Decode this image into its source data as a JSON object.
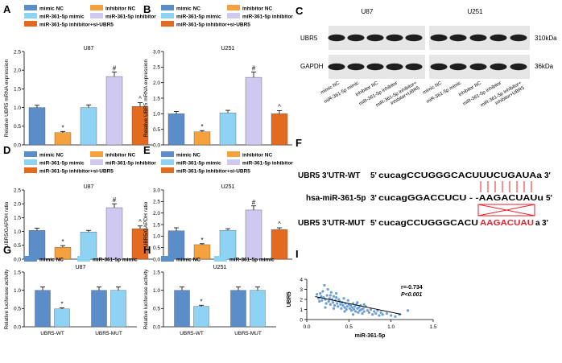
{
  "colors": {
    "mimic_nc": "#5b8ec9",
    "inhibitor_nc": "#f4a13e",
    "mimic": "#8fd3f4",
    "inhibitor": "#cfc8ef",
    "inhibitor_si": "#e36a1f",
    "scatter": "#6a9fd8",
    "red": "#e8202a"
  },
  "legends": {
    "five": [
      "mimic NC",
      "inhibitor NC",
      "miR-361-5p mimic",
      "miR-361-5p inhibitor",
      "miR-361-5p inhibitor+si-UBR5"
    ],
    "two": [
      "mimic NC",
      "miR-361-5p mimic"
    ]
  },
  "panel_c": {
    "label": "C",
    "titles": [
      "U87",
      "U251"
    ],
    "rows": [
      "UBR5",
      "GAPDH"
    ],
    "kda": [
      "310kDa",
      "36kDa"
    ],
    "lanes": [
      "mimic NC",
      "miR-361-5p mimic",
      "inhibitor NC",
      "miR-361-5p inhibitor",
      "miR-361-5p inhibitor+ inhibitor+UBR5",
      "mimic NC",
      "miR-361-5p mimic",
      "inhibitor NC",
      "miR-361-5p inhibitor",
      "miR-361-5p inhibitor+ inhibitor+UBR5"
    ]
  },
  "panel_f": {
    "label": "F",
    "rows": [
      {
        "name": "UBR5 3'UTR-WT",
        "prefix": "5'",
        "seq": "cucagCCUGGGCACUUUCUGAUAa",
        "suffix": "3'"
      },
      {
        "name": "hsa-miR-361-5p",
        "prefix": "3'",
        "seq": "cucagGGACCUCU - -AAGACUAUu",
        "suffix": "5'"
      },
      {
        "name": "UBR5 3'UTR-MUT",
        "prefix": "5'",
        "seq_black": "cucagCCUGGGCACU",
        "seq_red": "AAGACUAU",
        "seq_end": "a",
        "suffix": "3'"
      }
    ]
  },
  "chart_data": [
    {
      "id": "A",
      "panel_label": "A",
      "type": "bar",
      "title": "U87",
      "ylabel": "Relative UBR5 mRNA expression",
      "ylim": [
        0,
        2.5
      ],
      "yticks": [
        "0.0",
        "0.5",
        "1.0",
        "1.5",
        "2.0",
        "2.5"
      ],
      "categories": [
        "mimic NC",
        "miR-361-5p mimic",
        "inhibitor NC",
        "miR-361-5p inhibitor",
        "miR-361-5p inhibitor+si-UBR5"
      ],
      "values": [
        1.0,
        0.33,
        1.0,
        1.83,
        1.03
      ],
      "errors": [
        0.06,
        0.03,
        0.07,
        0.12,
        0.1
      ],
      "marks": [
        "",
        "*",
        "",
        "#",
        "^"
      ]
    },
    {
      "id": "B",
      "panel_label": "B",
      "type": "bar",
      "title": "U251",
      "ylabel": "Relative UBR5 mRNA expression",
      "ylim": [
        0,
        3
      ],
      "yticks": [
        "0.0",
        "0.5",
        "1.0",
        "1.5",
        "2.0",
        "2.5",
        "3.0"
      ],
      "categories": [
        "mimic NC",
        "miR-361-5p mimic",
        "inhibitor NC",
        "miR-361-5p inhibitor",
        "miR-361-5p inhibitor+si-UBR5"
      ],
      "values": [
        1.0,
        0.42,
        1.03,
        2.17,
        1.0
      ],
      "errors": [
        0.07,
        0.04,
        0.08,
        0.17,
        0.1
      ],
      "marks": [
        "",
        "*",
        "",
        "#",
        "^"
      ]
    },
    {
      "id": "D",
      "panel_label": "D",
      "type": "bar",
      "title": "U87",
      "ylabel": "UBR5/GAPDH ratio",
      "ylim": [
        0,
        2.5
      ],
      "yticks": [
        "0.0",
        "0.5",
        "1.0",
        "1.5",
        "2.0",
        "2.5"
      ],
      "categories": [
        "mimic NC",
        "miR-361-5p mimic",
        "inhibitor NC",
        "miR-361-5p inhibitor",
        "miR-361-5p inhibitor+si-UBR5"
      ],
      "values": [
        1.04,
        0.43,
        0.98,
        1.86,
        1.1
      ],
      "errors": [
        0.08,
        0.06,
        0.06,
        0.14,
        0.1
      ],
      "marks": [
        "",
        "*",
        "",
        "#",
        "^"
      ]
    },
    {
      "id": "E",
      "panel_label": "E",
      "type": "bar",
      "title": "U251",
      "ylabel": "UBR5/GAPDH ratio",
      "ylim": [
        0,
        3
      ],
      "yticks": [
        "0.0",
        "0.5",
        "1.0",
        "1.5",
        "2.0",
        "2.5",
        "3.0"
      ],
      "categories": [
        "mimic NC",
        "miR-361-5p mimic",
        "inhibitor NC",
        "miR-361-5p inhibitor",
        "miR-361-5p inhibitor+si-UBR5"
      ],
      "values": [
        1.23,
        0.63,
        1.25,
        2.13,
        1.28
      ],
      "errors": [
        0.13,
        0.04,
        0.07,
        0.18,
        0.08
      ],
      "marks": [
        "",
        "*",
        "",
        "#",
        "^"
      ]
    },
    {
      "id": "G",
      "panel_label": "G",
      "type": "bar",
      "title": "U87",
      "ylabel": "Relative luciferase activity",
      "ylim": [
        0,
        1.5
      ],
      "yticks": [
        "0.0",
        "0.5",
        "1.0",
        "1.5"
      ],
      "categories": [
        "UBR5-WT",
        "UBR5-MUT"
      ],
      "series": [
        {
          "name": "mimic NC",
          "values": [
            1.0,
            1.0
          ],
          "errors": [
            0.09,
            0.09
          ],
          "marks": [
            "",
            ""
          ]
        },
        {
          "name": "miR-361-5p mimic",
          "values": [
            0.49,
            1.0
          ],
          "errors": [
            0.03,
            0.09
          ],
          "marks": [
            "*",
            ""
          ]
        }
      ]
    },
    {
      "id": "H",
      "panel_label": "H",
      "type": "bar",
      "title": "U251",
      "ylabel": "Relative luciferase activity",
      "ylim": [
        0,
        1.5
      ],
      "yticks": [
        "0.0",
        "0.5",
        "1.0",
        "1.5"
      ],
      "categories": [
        "UBR5-WT",
        "UBR5-MUT"
      ],
      "series": [
        {
          "name": "mimic NC",
          "values": [
            1.0,
            1.0
          ],
          "errors": [
            0.09,
            0.09
          ],
          "marks": [
            "",
            ""
          ]
        },
        {
          "name": "miR-361-5p mimic",
          "values": [
            0.56,
            1.0
          ],
          "errors": [
            0.03,
            0.09
          ],
          "marks": [
            "*",
            ""
          ]
        }
      ]
    },
    {
      "id": "I",
      "panel_label": "I",
      "type": "scatter",
      "xlabel": "miR-361-5p",
      "ylabel": "UBR5",
      "xlim": [
        0,
        1.5
      ],
      "ylim": [
        0,
        4
      ],
      "xticks": [
        "0.0",
        "0.5",
        "1.0",
        "1.5"
      ],
      "yticks": [
        "0",
        "1",
        "2",
        "3",
        "4"
      ],
      "annotation": [
        "r=-0.734",
        "P<0.001"
      ],
      "fit": [
        [
          0.1,
          2.28
        ],
        [
          1.12,
          0.52
        ]
      ],
      "points": [
        [
          0.12,
          2.5
        ],
        [
          0.14,
          2.1
        ],
        [
          0.15,
          1.8
        ],
        [
          0.16,
          2.6
        ],
        [
          0.17,
          2.3
        ],
        [
          0.18,
          1.9
        ],
        [
          0.19,
          2.8
        ],
        [
          0.2,
          2.2
        ],
        [
          0.21,
          3.4
        ],
        [
          0.22,
          2.0
        ],
        [
          0.23,
          1.6
        ],
        [
          0.24,
          2.4
        ],
        [
          0.25,
          3.0
        ],
        [
          0.26,
          1.8
        ],
        [
          0.27,
          2.1
        ],
        [
          0.28,
          1.5
        ],
        [
          0.29,
          2.7
        ],
        [
          0.3,
          2.0
        ],
        [
          0.31,
          1.7
        ],
        [
          0.32,
          2.3
        ],
        [
          0.33,
          1.4
        ],
        [
          0.34,
          1.9
        ],
        [
          0.35,
          2.2
        ],
        [
          0.36,
          1.6
        ],
        [
          0.37,
          1.3
        ],
        [
          0.38,
          2.0
        ],
        [
          0.39,
          1.8
        ],
        [
          0.4,
          1.5
        ],
        [
          0.41,
          1.1
        ],
        [
          0.42,
          1.7
        ],
        [
          0.43,
          1.4
        ],
        [
          0.44,
          2.1
        ],
        [
          0.45,
          1.2
        ],
        [
          0.46,
          1.6
        ],
        [
          0.47,
          1.0
        ],
        [
          0.48,
          1.3
        ],
        [
          0.49,
          1.9
        ],
        [
          0.5,
          1.5
        ],
        [
          0.51,
          1.1
        ],
        [
          0.52,
          1.4
        ],
        [
          0.53,
          0.9
        ],
        [
          0.54,
          1.2
        ],
        [
          0.55,
          1.6
        ],
        [
          0.56,
          1.0
        ],
        [
          0.57,
          1.3
        ],
        [
          0.58,
          0.8
        ],
        [
          0.59,
          1.5
        ],
        [
          0.6,
          1.1
        ],
        [
          0.61,
          0.7
        ],
        [
          0.62,
          1.2
        ],
        [
          0.63,
          0.9
        ],
        [
          0.64,
          1.4
        ],
        [
          0.65,
          1.0
        ],
        [
          0.66,
          0.6
        ],
        [
          0.67,
          1.1
        ],
        [
          0.68,
          0.8
        ],
        [
          0.7,
          1.3
        ],
        [
          0.72,
          0.9
        ],
        [
          0.74,
          0.7
        ],
        [
          0.76,
          1.0
        ],
        [
          0.78,
          0.5
        ],
        [
          0.8,
          0.8
        ],
        [
          0.82,
          0.6
        ],
        [
          0.84,
          0.9
        ],
        [
          0.86,
          0.4
        ],
        [
          0.88,
          0.7
        ],
        [
          0.9,
          0.5
        ],
        [
          0.95,
          0.6
        ],
        [
          1.0,
          0.4
        ],
        [
          1.05,
          0.3
        ],
        [
          1.1,
          0.5
        ],
        [
          1.2,
          0.9
        ],
        [
          0.35,
          2.6
        ],
        [
          0.28,
          2.4
        ],
        [
          0.45,
          0.8
        ],
        [
          0.55,
          0.5
        ],
        [
          0.6,
          1.7
        ],
        [
          0.68,
          1.5
        ],
        [
          0.22,
          1.2
        ],
        [
          0.32,
          1.1
        ]
      ]
    }
  ]
}
